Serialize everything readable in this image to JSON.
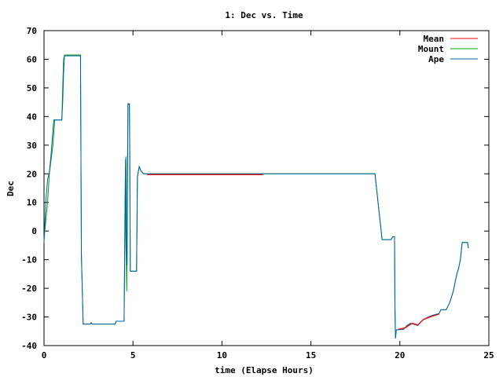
{
  "chart_data": {
    "type": "line",
    "title": "1: Dec vs. Time",
    "xlabel": "time (Elapse Hours)",
    "ylabel": "Dec",
    "xlim": [
      0,
      25
    ],
    "ylim": [
      -40,
      70
    ],
    "xticks": [
      0,
      5,
      10,
      15,
      20,
      25
    ],
    "yticks": [
      -40,
      -30,
      -20,
      -10,
      0,
      10,
      20,
      30,
      40,
      50,
      60,
      70
    ],
    "grid": false,
    "legend_position": "top-right",
    "series": [
      {
        "name": "Mean",
        "color": "#ff0000",
        "points": [
          [
            5.8,
            19.7
          ],
          [
            12.3,
            19.7
          ],
          [
            19.9,
            -34.3
          ],
          [
            20.3,
            -33.8
          ],
          [
            20.7,
            -32.2
          ],
          [
            21.0,
            -32.8
          ],
          [
            21.3,
            -31.0
          ],
          [
            21.7,
            -30.0
          ],
          [
            22.2,
            -29.0
          ]
        ]
      },
      {
        "name": "Mount",
        "color": "#00a000",
        "points": [
          [
            0,
            -3
          ],
          [
            0.2,
            10
          ],
          [
            0.3,
            20
          ],
          [
            0.5,
            30
          ],
          [
            0.6,
            38.8
          ],
          [
            1.0,
            38.8
          ],
          [
            1.05,
            50
          ],
          [
            1.1,
            60
          ],
          [
            1.15,
            61.5
          ],
          [
            2.05,
            61.5
          ],
          [
            2.1,
            -8
          ],
          [
            2.2,
            -32.5
          ],
          [
            2.6,
            -32.5
          ],
          [
            2.65,
            -32.0
          ],
          [
            2.7,
            -32.5
          ],
          [
            4.0,
            -32.5
          ],
          [
            4.05,
            -31.5
          ],
          [
            4.5,
            -31.5
          ],
          [
            4.55,
            10
          ],
          [
            4.58,
            25
          ],
          [
            4.6,
            0
          ],
          [
            4.62,
            -10
          ],
          [
            4.65,
            -21
          ],
          [
            4.68,
            20
          ],
          [
            4.7,
            30
          ],
          [
            4.72,
            44.2
          ],
          [
            4.8,
            44.2
          ],
          [
            4.85,
            -14
          ],
          [
            5.2,
            -14
          ],
          [
            5.25,
            19
          ],
          [
            5.35,
            22.5
          ],
          [
            5.45,
            21.0
          ],
          [
            5.6,
            20.0
          ],
          [
            18.6,
            20.0
          ],
          [
            19.0,
            -3
          ],
          [
            19.5,
            -3
          ],
          [
            19.6,
            -2
          ],
          [
            19.7,
            -2
          ],
          [
            19.72,
            -25
          ],
          [
            19.75,
            -37.5
          ],
          [
            19.8,
            -34.5
          ],
          [
            20.2,
            -34.3
          ],
          [
            20.4,
            -33.0
          ],
          [
            20.6,
            -32.2
          ],
          [
            21.0,
            -33.0
          ],
          [
            21.3,
            -31.0
          ],
          [
            21.6,
            -30.0
          ],
          [
            21.8,
            -29.5
          ],
          [
            22.2,
            -28.8
          ],
          [
            22.3,
            -27.5
          ],
          [
            22.6,
            -27.5
          ],
          [
            22.8,
            -25
          ],
          [
            23.0,
            -21
          ],
          [
            23.1,
            -18
          ],
          [
            23.2,
            -15
          ],
          [
            23.3,
            -13
          ],
          [
            23.4,
            -10
          ],
          [
            23.45,
            -7
          ],
          [
            23.5,
            -4
          ],
          [
            23.8,
            -4
          ],
          [
            23.85,
            -6
          ]
        ]
      },
      {
        "name": "Ape",
        "color": "#0060ad",
        "points": [
          [
            0,
            -4
          ],
          [
            0.1,
            10
          ],
          [
            0.2,
            18
          ],
          [
            0.3,
            20.5
          ],
          [
            0.4,
            27
          ],
          [
            0.5,
            35
          ],
          [
            0.55,
            38.8
          ],
          [
            1.0,
            38.8
          ],
          [
            1.05,
            45
          ],
          [
            1.1,
            55
          ],
          [
            1.15,
            61.2
          ],
          [
            2.05,
            61.2
          ],
          [
            2.1,
            -8
          ],
          [
            2.2,
            -32.5
          ],
          [
            2.6,
            -32.5
          ],
          [
            2.65,
            -32.0
          ],
          [
            2.7,
            -32.5
          ],
          [
            4.0,
            -32.5
          ],
          [
            4.05,
            -31.5
          ],
          [
            4.5,
            -31.5
          ],
          [
            4.55,
            0
          ],
          [
            4.6,
            26
          ],
          [
            4.63,
            -5
          ],
          [
            4.67,
            -12
          ],
          [
            4.7,
            22
          ],
          [
            4.72,
            44.5
          ],
          [
            4.8,
            44.5
          ],
          [
            4.82,
            30
          ],
          [
            4.85,
            -14
          ],
          [
            5.2,
            -14
          ],
          [
            5.25,
            19
          ],
          [
            5.35,
            22.5
          ],
          [
            5.45,
            21.0
          ],
          [
            5.6,
            20.0
          ],
          [
            18.6,
            20.0
          ],
          [
            19.0,
            -3
          ],
          [
            19.5,
            -3
          ],
          [
            19.6,
            -2
          ],
          [
            19.7,
            -2
          ],
          [
            19.72,
            -25
          ],
          [
            19.75,
            -37.5
          ],
          [
            19.8,
            -34.5
          ],
          [
            20.2,
            -34.3
          ],
          [
            20.4,
            -33.0
          ],
          [
            20.6,
            -32.2
          ],
          [
            21.0,
            -33.0
          ],
          [
            21.3,
            -31.0
          ],
          [
            21.6,
            -30.0
          ],
          [
            21.8,
            -29.5
          ],
          [
            22.2,
            -28.8
          ],
          [
            22.3,
            -27.5
          ],
          [
            22.6,
            -27.5
          ],
          [
            22.8,
            -25
          ],
          [
            23.0,
            -21
          ],
          [
            23.1,
            -18
          ],
          [
            23.2,
            -15
          ],
          [
            23.3,
            -13
          ],
          [
            23.4,
            -10
          ],
          [
            23.45,
            -7
          ],
          [
            23.5,
            -4
          ],
          [
            23.8,
            -4
          ],
          [
            23.85,
            -6
          ]
        ]
      }
    ]
  }
}
